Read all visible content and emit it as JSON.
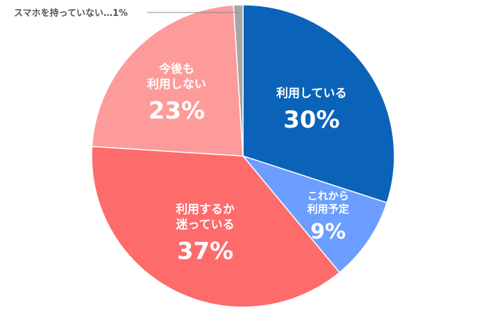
{
  "chart_data": {
    "type": "pie",
    "title": "",
    "slices": [
      {
        "label_lines": [
          "利用している"
        ],
        "value": 30,
        "value_label": "30%",
        "color": "#0a63b8"
      },
      {
        "label_lines": [
          "これから",
          "利用予定"
        ],
        "value": 9,
        "value_label": "9%",
        "color": "#6c9eff"
      },
      {
        "label_lines": [
          "利用するか",
          "迷っている"
        ],
        "value": 37,
        "value_label": "37%",
        "color": "#fd6b6b"
      },
      {
        "label_lines": [
          "今後も",
          "利用しない"
        ],
        "value": 23,
        "value_label": "23%",
        "color": "#fd9b9b"
      },
      {
        "label_lines": [
          "スマホを持っていない…1%"
        ],
        "value": 1,
        "value_label": "",
        "color": "#a6a6a6",
        "callout": true
      }
    ],
    "start_angle_deg": 0,
    "direction": "clockwise"
  }
}
